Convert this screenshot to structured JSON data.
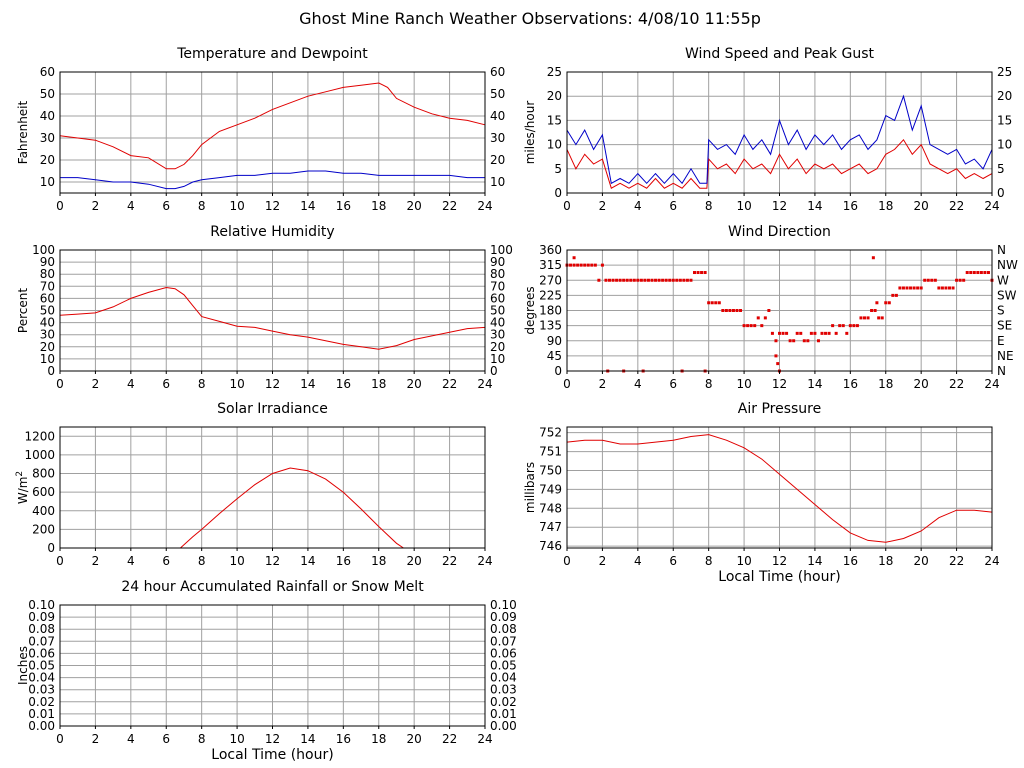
{
  "page_title": "Ghost Mine Ranch Weather Observations: 4/08/10 11:55p",
  "colors": {
    "red": "#e00000",
    "blue": "#0000c8",
    "grid": "#a0a0a0"
  },
  "chart_data": [
    {
      "id": "temperature",
      "type": "line",
      "title": "Temperature and Dewpoint",
      "xlabel": "",
      "ylabel": "Fahrenheit",
      "xlim": [
        0,
        24
      ],
      "ylim": [
        5,
        60
      ],
      "xticks": [
        0,
        2,
        4,
        6,
        8,
        10,
        12,
        14,
        16,
        18,
        20,
        22,
        24
      ],
      "yticks": [
        10,
        20,
        30,
        40,
        50,
        60
      ],
      "right_axis": true,
      "grid": true,
      "series": [
        {
          "color": "#e00000",
          "x": [
            0,
            1,
            2,
            3,
            4,
            5,
            6,
            6.5,
            7,
            7.5,
            8,
            8.5,
            9,
            10,
            11,
            12,
            13,
            14,
            15,
            16,
            17,
            18,
            18.5,
            19,
            20,
            21,
            22,
            23,
            24
          ],
          "y": [
            31,
            30,
            29,
            26,
            22,
            21,
            16,
            16,
            18,
            22,
            27,
            30,
            33,
            36,
            39,
            43,
            46,
            49,
            51,
            53,
            54,
            55,
            53,
            48,
            44,
            41,
            39,
            38,
            36
          ]
        },
        {
          "color": "#0000c8",
          "x": [
            0,
            1,
            2,
            3,
            4,
            5,
            6,
            6.5,
            7,
            7.5,
            8,
            9,
            10,
            11,
            12,
            13,
            14,
            15,
            16,
            17,
            18,
            19,
            20,
            21,
            22,
            23,
            24
          ],
          "y": [
            12,
            12,
            11,
            10,
            10,
            9,
            7,
            7,
            8,
            10,
            11,
            12,
            13,
            13,
            14,
            14,
            15,
            15,
            14,
            14,
            13,
            13,
            13,
            13,
            13,
            12,
            12
          ]
        }
      ]
    },
    {
      "id": "humidity",
      "type": "line",
      "title": "Relative Humidity",
      "xlabel": "",
      "ylabel": "Percent",
      "xlim": [
        0,
        24
      ],
      "ylim": [
        0,
        100
      ],
      "xticks": [
        0,
        2,
        4,
        6,
        8,
        10,
        12,
        14,
        16,
        18,
        20,
        22,
        24
      ],
      "yticks": [
        0,
        10,
        20,
        30,
        40,
        50,
        60,
        70,
        80,
        90,
        100
      ],
      "right_axis": true,
      "grid": true,
      "series": [
        {
          "color": "#e00000",
          "x": [
            0,
            1,
            2,
            3,
            4,
            5,
            6,
            6.5,
            7,
            7.5,
            8,
            9,
            10,
            11,
            12,
            13,
            14,
            15,
            16,
            17,
            18,
            19,
            20,
            21,
            22,
            23,
            24
          ],
          "y": [
            46,
            47,
            48,
            53,
            60,
            65,
            69,
            68,
            63,
            54,
            45,
            41,
            37,
            36,
            33,
            30,
            28,
            25,
            22,
            20,
            18,
            21,
            26,
            29,
            32,
            35,
            36
          ]
        }
      ]
    },
    {
      "id": "solar",
      "type": "line",
      "title": "Solar Irradiance",
      "xlabel": "",
      "ylabel": "W/m",
      "ylabel_sup": "2",
      "xlim": [
        0,
        24
      ],
      "ylim": [
        0,
        1300
      ],
      "xticks": [
        0,
        2,
        4,
        6,
        8,
        10,
        12,
        14,
        16,
        18,
        20,
        22,
        24
      ],
      "yticks": [
        0,
        200,
        400,
        600,
        800,
        1000,
        1200
      ],
      "right_axis": false,
      "grid": true,
      "series": [
        {
          "color": "#e00000",
          "x": [
            0,
            6.8,
            7.5,
            8,
            9,
            10,
            11,
            12,
            13,
            14,
            15,
            16,
            17,
            18,
            19,
            19.4,
            24
          ],
          "y": [
            0,
            0,
            120,
            200,
            370,
            530,
            680,
            800,
            860,
            830,
            740,
            600,
            420,
            230,
            50,
            0,
            0
          ]
        }
      ]
    },
    {
      "id": "rain",
      "type": "line",
      "title": "24 hour Accumulated Rainfall or Snow Melt",
      "xlabel": "Local Time (hour)",
      "ylabel": "Inches",
      "xlim": [
        0,
        24
      ],
      "ylim": [
        0,
        0.1
      ],
      "xticks": [
        0,
        2,
        4,
        6,
        8,
        10,
        12,
        14,
        16,
        18,
        20,
        22,
        24
      ],
      "yticks": [
        "0.00",
        "0.01",
        "0.02",
        "0.03",
        "0.04",
        "0.05",
        "0.06",
        "0.07",
        "0.08",
        "0.09",
        "0.10"
      ],
      "right_axis": true,
      "grid": true,
      "series": [
        {
          "color": "#e00000",
          "x": [
            0,
            24
          ],
          "y": [
            0,
            0
          ]
        }
      ]
    },
    {
      "id": "wind_speed",
      "type": "line",
      "title": "Wind Speed and Peak Gust",
      "xlabel": "",
      "ylabel": "miles/hour",
      "xlim": [
        0,
        24
      ],
      "ylim": [
        0,
        25
      ],
      "xticks": [
        0,
        2,
        4,
        6,
        8,
        10,
        12,
        14,
        16,
        18,
        20,
        22,
        24
      ],
      "yticks": [
        0,
        5,
        10,
        15,
        20,
        25
      ],
      "right_axis": true,
      "grid": true,
      "series": [
        {
          "color": "#e00000",
          "x": [
            0,
            0.5,
            1,
            1.5,
            2,
            2.5,
            3,
            3.5,
            4,
            4.5,
            5,
            5.5,
            6,
            6.5,
            7,
            7.5,
            7.9,
            8,
            8.5,
            9,
            9.5,
            10,
            10.5,
            11,
            11.5,
            12,
            12.5,
            13,
            13.5,
            14,
            14.5,
            15,
            15.5,
            16,
            16.5,
            17,
            17.5,
            18,
            18.5,
            19,
            19.5,
            20,
            20.5,
            21,
            21.5,
            22,
            22.5,
            23,
            23.5,
            24
          ],
          "y": [
            9,
            5,
            8,
            6,
            7,
            1,
            2,
            1,
            2,
            1,
            3,
            1,
            2,
            1,
            3,
            1,
            1,
            7,
            5,
            6,
            4,
            7,
            5,
            6,
            4,
            8,
            5,
            7,
            4,
            6,
            5,
            6,
            4,
            5,
            6,
            4,
            5,
            8,
            9,
            11,
            8,
            10,
            6,
            5,
            4,
            5,
            3,
            4,
            3,
            4
          ]
        },
        {
          "color": "#0000c8",
          "x": [
            0,
            0.5,
            1,
            1.5,
            2,
            2.5,
            3,
            3.5,
            4,
            4.5,
            5,
            5.5,
            6,
            6.5,
            7,
            7.5,
            7.9,
            8,
            8.5,
            9,
            9.5,
            10,
            10.5,
            11,
            11.5,
            12,
            12.5,
            13,
            13.5,
            14,
            14.5,
            15,
            15.5,
            16,
            16.5,
            17,
            17.5,
            18,
            18.5,
            19,
            19.5,
            20,
            20.5,
            21,
            21.5,
            22,
            22.5,
            23,
            23.5,
            24
          ],
          "y": [
            13,
            10,
            13,
            9,
            12,
            2,
            3,
            2,
            4,
            2,
            4,
            2,
            4,
            2,
            5,
            2,
            2,
            11,
            9,
            10,
            8,
            12,
            9,
            11,
            8,
            15,
            10,
            13,
            9,
            12,
            10,
            12,
            9,
            11,
            12,
            9,
            11,
            16,
            15,
            20,
            13,
            18,
            10,
            9,
            8,
            9,
            6,
            7,
            5,
            9
          ]
        }
      ]
    },
    {
      "id": "wind_direction",
      "type": "scatter",
      "title": "Wind Direction",
      "xlabel": "",
      "ylabel": "degrees",
      "xlim": [
        0,
        24
      ],
      "ylim": [
        0,
        360
      ],
      "xticks": [
        0,
        2,
        4,
        6,
        8,
        10,
        12,
        14,
        16,
        18,
        20,
        22,
        24
      ],
      "yticks": [
        0,
        45,
        90,
        135,
        180,
        225,
        270,
        315,
        360
      ],
      "right_ticks": [
        "N",
        "NE",
        "E",
        "SE",
        "S",
        "SW",
        "W",
        "NW",
        "N"
      ],
      "right_axis": true,
      "grid": true,
      "series": [
        {
          "color": "#e00000",
          "x": [
            0,
            0.2,
            0.4,
            0.6,
            0.8,
            1,
            1.2,
            1.4,
            1.6,
            1.8,
            2,
            2.2,
            2.4,
            2.6,
            2.8,
            3,
            3.2,
            3.4,
            3.6,
            3.8,
            4,
            4.2,
            4.4,
            4.6,
            4.8,
            5,
            5.2,
            5.4,
            5.6,
            5.8,
            6,
            6.2,
            6.4,
            6.6,
            6.8,
            7,
            7.2,
            7.4,
            7.6,
            7.8,
            8,
            8.2,
            8.4,
            8.6,
            8.8,
            9,
            9.2,
            9.4,
            9.6,
            9.8,
            10,
            10.2,
            10.4,
            10.6,
            10.8,
            11,
            11.2,
            11.4,
            11.6,
            11.8,
            12,
            12.2,
            12.4,
            12.6,
            12.8,
            13,
            13.2,
            13.4,
            13.6,
            13.8,
            14,
            14.2,
            14.4,
            14.6,
            14.8,
            15,
            15.2,
            15.4,
            15.6,
            15.8,
            16,
            16.2,
            16.4,
            16.6,
            16.8,
            17,
            17.2,
            17.4,
            17.6,
            17.8,
            18,
            18.2,
            18.4,
            18.6,
            18.8,
            19,
            19.2,
            19.4,
            19.6,
            19.8,
            20,
            20.2,
            20.4,
            20.6,
            20.8,
            21,
            21.2,
            21.4,
            21.6,
            21.8,
            22,
            22.2,
            22.4,
            22.6,
            22.8,
            23,
            23.2,
            23.4,
            23.6,
            23.8,
            24
          ],
          "y": [
            315,
            315,
            315,
            315,
            315,
            315,
            315,
            315,
            315,
            270,
            315,
            270,
            270,
            270,
            270,
            270,
            270,
            270,
            270,
            270,
            270,
            270,
            270,
            270,
            270,
            270,
            270,
            270,
            270,
            270,
            270,
            270,
            270,
            270,
            270,
            270,
            293,
            293,
            293,
            293,
            203,
            203,
            203,
            203,
            180,
            180,
            180,
            180,
            180,
            180,
            135,
            135,
            135,
            135,
            158,
            135,
            158,
            180,
            112,
            90,
            112,
            112,
            112,
            90,
            90,
            112,
            112,
            90,
            90,
            112,
            112,
            90,
            112,
            112,
            112,
            135,
            112,
            135,
            135,
            112,
            135,
            135,
            135,
            158,
            158,
            158,
            180,
            180,
            158,
            158,
            203,
            203,
            225,
            225,
            247,
            247,
            247,
            247,
            247,
            247,
            247,
            270,
            270,
            270,
            270,
            247,
            247,
            247,
            247,
            247,
            270,
            270,
            270,
            293,
            293,
            293,
            293,
            293,
            293,
            293,
            270
          ]
        },
        {
          "color": "#e00000",
          "x": [
            0.4,
            2.3,
            3.2,
            4.3,
            6.5,
            7.8,
            11.8,
            11.9,
            12.0,
            17.3,
            17.5
          ],
          "y": [
            337,
            0,
            0,
            0,
            0,
            0,
            45,
            22,
            0,
            337,
            203
          ]
        }
      ]
    },
    {
      "id": "pressure",
      "type": "line",
      "title": "Air Pressure",
      "xlabel": "Local Time (hour)",
      "ylabel": "millibars",
      "xlim": [
        0,
        24
      ],
      "ylim": [
        745.9,
        752.3
      ],
      "xticks": [
        0,
        2,
        4,
        6,
        8,
        10,
        12,
        14,
        16,
        18,
        20,
        22,
        24
      ],
      "yticks": [
        746,
        747,
        748,
        749,
        750,
        751,
        752
      ],
      "right_axis": false,
      "grid": true,
      "series": [
        {
          "color": "#e00000",
          "x": [
            0,
            1,
            2,
            3,
            4,
            5,
            6,
            7,
            8,
            9,
            10,
            11,
            12,
            13,
            14,
            15,
            16,
            17,
            18,
            19,
            20,
            21,
            22,
            23,
            24
          ],
          "y": [
            751.5,
            751.6,
            751.6,
            751.4,
            751.4,
            751.5,
            751.6,
            751.8,
            751.9,
            751.6,
            751.2,
            750.6,
            749.8,
            749.0,
            748.2,
            747.4,
            746.7,
            746.3,
            746.2,
            746.4,
            746.8,
            747.5,
            747.9,
            747.9,
            747.8
          ]
        }
      ]
    }
  ]
}
